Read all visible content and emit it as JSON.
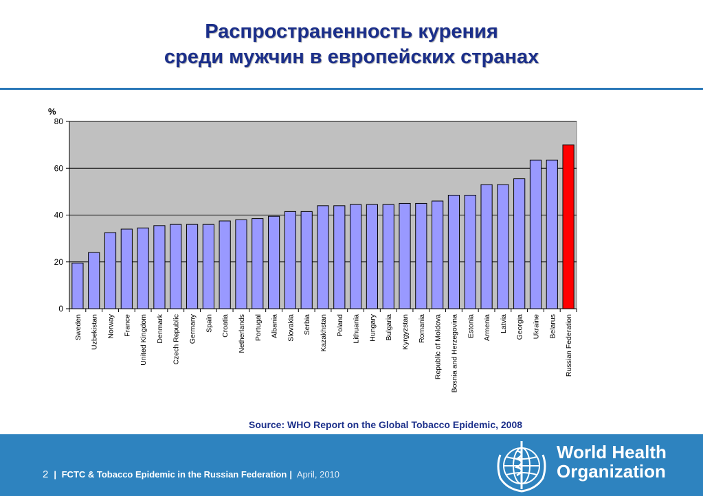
{
  "slide": {
    "title_line1": "Распространенность курения",
    "title_line2": "среди мужчин в европейских странах",
    "source": "Source: WHO Report on the Global Tobacco Epidemic, 2008"
  },
  "footer": {
    "page_number": "2",
    "separator": "|",
    "main_text": "FCTC &  Tobacco Epidemic in the Russian Federation",
    "date": "April, 2010",
    "logo_line1": "World Health",
    "logo_line2": "Organization",
    "logo_icon": "who-emblem-icon"
  },
  "colors": {
    "title": "#1b2f8a",
    "bar": "#9999ff",
    "highlight_bar": "#ff0000",
    "plot_bg": "#c0c0c0",
    "footer_bg": "#2e83bf"
  },
  "chart_data": {
    "type": "bar",
    "ylabel": "%",
    "ylim": [
      0,
      80
    ],
    "yticks": [
      0,
      20,
      40,
      60,
      80
    ],
    "grid": true,
    "categories": [
      "Sweden",
      "Uzbekistan",
      "Norway",
      "France",
      "United Kingdom",
      "Denmark",
      "Czech Republic",
      "Germany",
      "Spain",
      "Croatia",
      "Netherlands",
      "Portugal",
      "Albania",
      "Slovakia",
      "Serbia",
      "Kazakhstan",
      "Poland",
      "Lithuania",
      "Hungary",
      "Bulgaria",
      "Kyrgyzstan",
      "Romania",
      "Republic of Moldova",
      "Bosnia and Herzegovina",
      "Estonia",
      "Armenia",
      "Latvia",
      "Georgia",
      "Ukraine",
      "Belarus",
      "Russian Federation"
    ],
    "values": [
      19.5,
      24,
      32.5,
      34,
      34.5,
      35.5,
      36,
      36,
      36,
      37.5,
      38,
      38.5,
      39.5,
      41.5,
      41.5,
      44,
      44,
      44.5,
      44.5,
      44.5,
      45,
      45,
      46,
      48.5,
      48.5,
      53,
      53,
      55.5,
      63.5,
      63.5,
      70
    ],
    "highlight": "Russian Federation"
  }
}
